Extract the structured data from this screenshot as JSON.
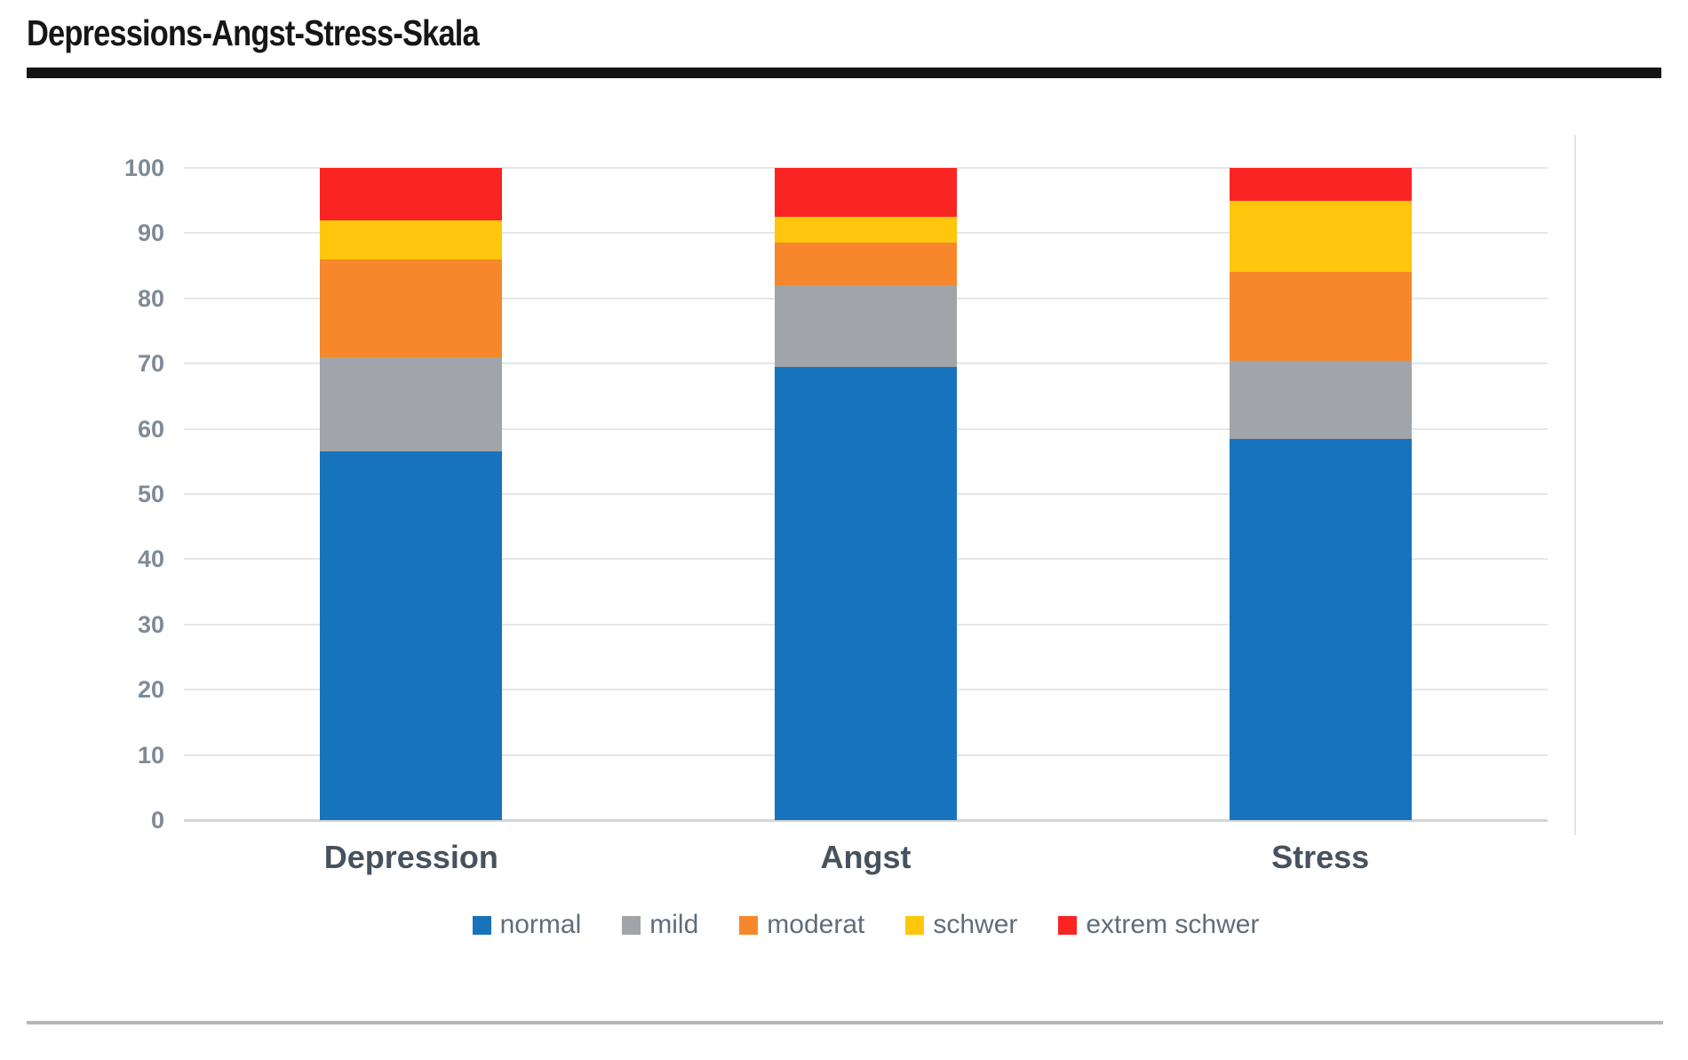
{
  "title": "Depressions-Angst-Stress-Skala",
  "chart_data": {
    "type": "bar",
    "stacked": true,
    "title": "Depressions-Angst-Stress-Skala",
    "categories": [
      "Depression",
      "Angst",
      "Stress"
    ],
    "series": [
      {
        "name": "normal",
        "color": "#1774bc",
        "values": [
          56.5,
          69.5,
          58.5
        ]
      },
      {
        "name": "mild",
        "color": "#a1a4a8",
        "values": [
          14.5,
          12.5,
          12
        ]
      },
      {
        "name": "moderat",
        "color": "#f6882b",
        "values": [
          15,
          6.5,
          13.5
        ]
      },
      {
        "name": "schwer",
        "color": "#ffc60d",
        "values": [
          6,
          4,
          11
        ]
      },
      {
        "name": "extrem schwer",
        "color": "#fa2423",
        "values": [
          8,
          7.5,
          5
        ]
      }
    ],
    "xlabel": "",
    "ylabel": "",
    "ylim": [
      0,
      100
    ],
    "yticks": [
      0,
      10,
      20,
      30,
      40,
      50,
      60,
      70,
      80,
      90,
      100
    ],
    "grid": true,
    "legend_position": "bottom"
  },
  "colors": {
    "grid": "#e3e7ea",
    "axis_line": "#d2d6d9",
    "tick_label": "#7e8b97",
    "category_label": "#46525e",
    "legend_text": "#5f6d7a",
    "title_rule": "#141414",
    "bottom_rule": "#b6b6b6"
  }
}
